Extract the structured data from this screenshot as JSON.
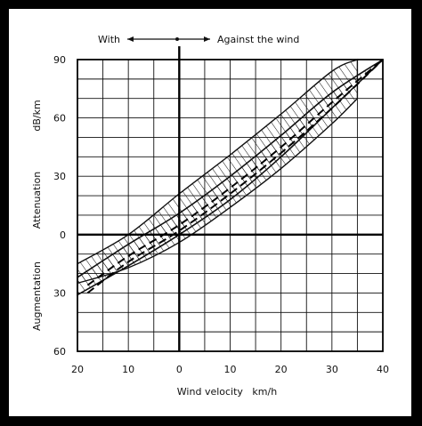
{
  "chart_data": {
    "type": "area",
    "top_annotation": {
      "left": "With",
      "right": "Against the wind"
    },
    "xlabel": "Wind velocity   km/h",
    "xlim": [
      -20,
      40
    ],
    "x_ticks": [
      {
        "value": -20,
        "label": "20"
      },
      {
        "value": -10,
        "label": "10"
      },
      {
        "value": 0,
        "label": "0"
      },
      {
        "value": 10,
        "label": "10"
      },
      {
        "value": 20,
        "label": "20"
      },
      {
        "value": 30,
        "label": "30"
      },
      {
        "value": 40,
        "label": "40"
      }
    ],
    "ylim": [
      -60,
      90
    ],
    "y_ticks": [
      {
        "value": 90,
        "label": "90"
      },
      {
        "value": 60,
        "label": "60"
      },
      {
        "value": 30,
        "label": "30"
      },
      {
        "value": 0,
        "label": "0"
      },
      {
        "value": -30,
        "label": "30"
      },
      {
        "value": -60,
        "label": "60"
      }
    ],
    "ylabel_upper": "Attenuation",
    "ylabel_unit": "dB/km",
    "ylabel_lower": "Augmentation",
    "grid": true,
    "series": [
      {
        "style": "band",
        "x": [
          -20,
          -10,
          0,
          10,
          20,
          30,
          35
        ],
        "upper": [
          -15,
          0,
          21,
          41,
          62,
          84,
          92
        ],
        "lower": [
          -25,
          -17,
          -4,
          14,
          34,
          57,
          70
        ]
      },
      {
        "style": "band-inner",
        "x": [
          -20,
          -10,
          0,
          10,
          20,
          30,
          40
        ],
        "upper": [
          -22,
          -5,
          11,
          30,
          51,
          73,
          92
        ],
        "lower": [
          -31,
          -16,
          0,
          18,
          40,
          65,
          91
        ]
      },
      {
        "style": "dashed",
        "x": [
          -18,
          -10,
          0,
          10,
          20,
          30,
          40
        ],
        "y": [
          -26,
          -11,
          5,
          24,
          45,
          68,
          92
        ]
      },
      {
        "style": "dashed",
        "x": [
          -18,
          -10,
          0,
          10,
          20,
          30,
          40
        ],
        "y": [
          -30,
          -14,
          2,
          21,
          42,
          65,
          90
        ]
      }
    ]
  }
}
